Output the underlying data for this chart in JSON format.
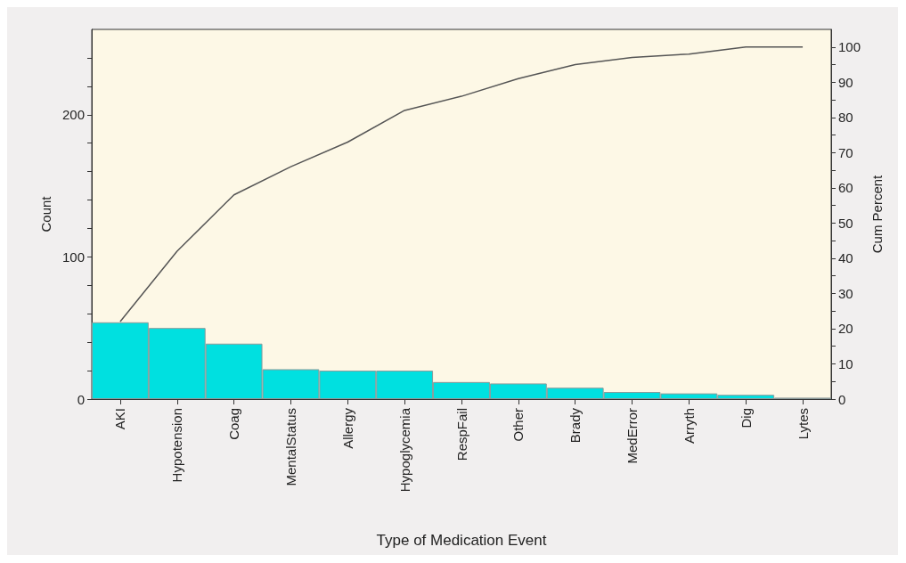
{
  "chart_data": {
    "type": "bar",
    "xlabel": "Type of Medication Event",
    "ylabel": "Count",
    "y2label": "Cum Percent",
    "categories": [
      "AKI",
      "Hypotension",
      "Coag",
      "MentalStatus",
      "Allergy",
      "Hypoglycemia",
      "RespFail",
      "Other",
      "Brady",
      "MedError",
      "Arryth",
      "Dig",
      "Lytes"
    ],
    "series": [
      {
        "color": "#00e0e0",
        "values": [
          54,
          50,
          39,
          21,
          20,
          20,
          12,
          11,
          8,
          5,
          4,
          3,
          1
        ]
      },
      {
        "type": "line",
        "axis": "y2",
        "color": "#555555",
        "values": [
          22,
          42,
          58,
          66,
          73,
          82,
          86,
          91,
          95,
          97,
          98,
          100,
          100
        ]
      }
    ],
    "ylim": [
      0,
      260
    ],
    "yticks": [
      0,
      {
        "value": 20,
        "label": null
      },
      {
        "value": 40,
        "label": null
      },
      {
        "value": 60,
        "label": null
      },
      {
        "value": 80,
        "label": null
      },
      100,
      {
        "value": 120,
        "label": null
      },
      {
        "value": 140,
        "label": null
      },
      {
        "value": 160,
        "label": null
      },
      {
        "value": 180,
        "label": null
      },
      200,
      {
        "value": 220,
        "label": null
      },
      {
        "value": 240,
        "label": null
      }
    ],
    "y2lim": [
      0,
      105
    ],
    "y2ticks": [
      0,
      {
        "value": 5,
        "label": null
      },
      10,
      {
        "value": 15,
        "label": null
      },
      20,
      {
        "value": 25,
        "label": null
      },
      30,
      {
        "value": 35,
        "label": null
      },
      40,
      {
        "value": 45,
        "label": null
      },
      50,
      {
        "value": 55,
        "label": null
      },
      60,
      {
        "value": 65,
        "label": null
      },
      70,
      {
        "value": 75,
        "label": null
      },
      80,
      {
        "value": 85,
        "label": null
      },
      90,
      {
        "value": 95,
        "label": null
      },
      100
    ],
    "grid": false,
    "marker": "none",
    "line_style": "solid"
  }
}
